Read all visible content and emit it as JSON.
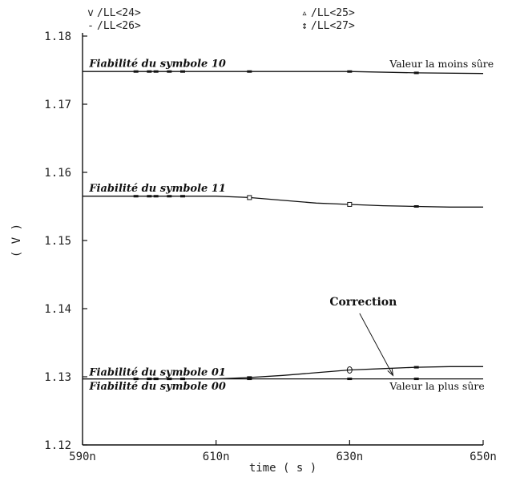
{
  "chart_data": {
    "type": "line",
    "title": "",
    "xlabel": "time ( s )",
    "ylabel": "( V )",
    "xlim": [
      590,
      650
    ],
    "ylim": [
      1.12,
      1.18
    ],
    "xticks": [
      590,
      610,
      630,
      650
    ],
    "xtick_labels": [
      "590n",
      "610n",
      "630n",
      "650n"
    ],
    "yticks": [
      1.12,
      1.13,
      1.14,
      1.15,
      1.16,
      1.17,
      1.18
    ],
    "ytick_labels": [
      "1.12",
      "1.13",
      "1.14",
      "1.15",
      "1.16",
      "1.17",
      "1.18"
    ],
    "grid": false,
    "legend": {
      "placement": "top",
      "entries": [
        {
          "marker": "v",
          "label": "/LL<24>"
        },
        {
          "marker": "▵",
          "label": "/LL<25>"
        },
        {
          "marker": "-",
          "label": "/LL<26>"
        },
        {
          "marker": "↕",
          "label": "/LL<27>"
        }
      ]
    },
    "series": [
      {
        "name": "/LL<24>",
        "x": [
          590,
          600,
          610,
          615,
          620,
          630,
          640,
          650
        ],
        "y": [
          1.1748,
          1.1748,
          1.1748,
          1.1748,
          1.1748,
          1.1748,
          1.1746,
          1.1745
        ]
      },
      {
        "name": "/LL<25>",
        "x": [
          590,
          600,
          610,
          615,
          620,
          625,
          630,
          635,
          640,
          645,
          650
        ],
        "y": [
          1.1565,
          1.1565,
          1.1565,
          1.1563,
          1.1559,
          1.1555,
          1.1553,
          1.1551,
          1.155,
          1.1549,
          1.1549
        ]
      },
      {
        "name": "/LL<26>",
        "x": [
          590,
          600,
          610,
          615,
          620,
          625,
          630,
          635,
          640,
          645,
          650
        ],
        "y": [
          1.1297,
          1.1297,
          1.1297,
          1.1299,
          1.1302,
          1.1306,
          1.131,
          1.1312,
          1.1314,
          1.1315,
          1.1315
        ]
      },
      {
        "name": "/LL<27>",
        "x": [
          590,
          600,
          610,
          620,
          630,
          640,
          650
        ],
        "y": [
          1.1297,
          1.1297,
          1.1297,
          1.1297,
          1.1297,
          1.1297,
          1.1297
        ]
      }
    ],
    "annotations": [
      {
        "text": "Fiabilité du symbole 10",
        "style": "italic-bold",
        "x": 591,
        "y": 1.1755
      },
      {
        "text": "Valeur la moins sûre",
        "style": "plain",
        "x": 636,
        "y": 1.1754
      },
      {
        "text": "Fiabilité du symbole 11",
        "style": "italic-bold",
        "x": 591,
        "y": 1.1572
      },
      {
        "text": "Fiabilité du symbole 01",
        "style": "italic-bold",
        "x": 591,
        "y": 1.1302
      },
      {
        "text": "Fiabilité du symbole 00",
        "style": "italic-bold",
        "x": 591,
        "y": 1.1281
      },
      {
        "text": "Valeur la plus sûre",
        "style": "plain",
        "x": 636,
        "y": 1.1281
      },
      {
        "text": "Correction",
        "style": "bold",
        "x": 627,
        "y": 1.1405
      }
    ],
    "arrow": {
      "from": [
        631.5,
        1.1393
      ],
      "to": [
        636.5,
        1.1302
      ]
    }
  }
}
